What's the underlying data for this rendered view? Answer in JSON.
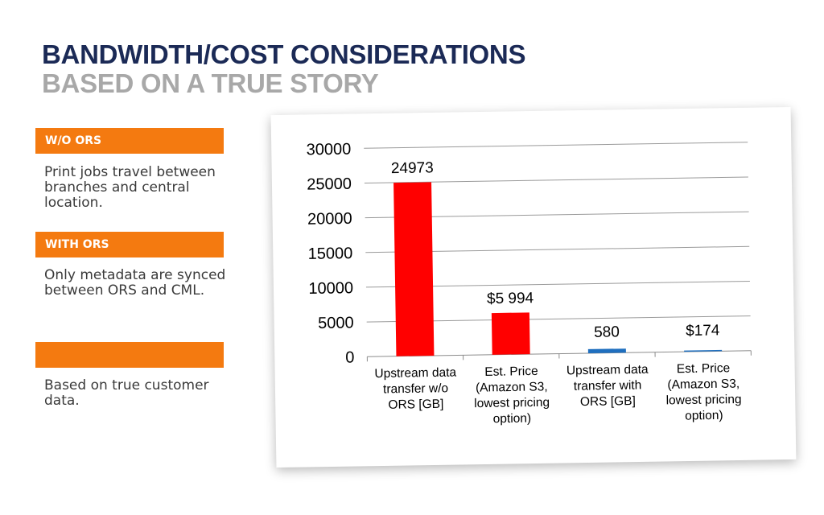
{
  "slide": {
    "title": "BANDWIDTH/COST CONSIDERATIONS",
    "subtitle": "BASED ON A TRUE STORY"
  },
  "sidebar": {
    "sections": [
      {
        "label": "W/O ORS",
        "text": "Print jobs travel between branches and central location."
      },
      {
        "label": "WITH ORS",
        "text": "Only metadata are synced between ORS and CML."
      },
      {
        "label": "",
        "text": "Based on true customer data."
      }
    ]
  },
  "colors": {
    "accent": "#f47a10",
    "title": "#1b2a56",
    "subtitle": "#a8a8a8"
  },
  "chart_data": {
    "type": "bar",
    "categories": [
      [
        "Upstream data",
        "transfer w/o",
        "ORS [GB]"
      ],
      [
        "Est. Price",
        "(Amazon S3,",
        "lowest pricing",
        "option)"
      ],
      [
        "Upstream data",
        "transfer with",
        "ORS [GB]"
      ],
      [
        "Est. Price",
        "(Amazon S3,",
        "lowest pricing",
        "option)"
      ]
    ],
    "values": [
      24973,
      5994,
      580,
      174
    ],
    "data_labels": [
      "24973",
      "$5 994",
      "580",
      "$174"
    ],
    "bar_colors": [
      "#ff0000",
      "#ff0000",
      "#1f6fbf",
      "#1f6fbf"
    ],
    "ylim": [
      0,
      30000
    ],
    "yticks": [
      0,
      5000,
      10000,
      15000,
      20000,
      25000,
      30000
    ],
    "grid": true,
    "legend": "none",
    "title": "",
    "xlabel": "",
    "ylabel": ""
  }
}
